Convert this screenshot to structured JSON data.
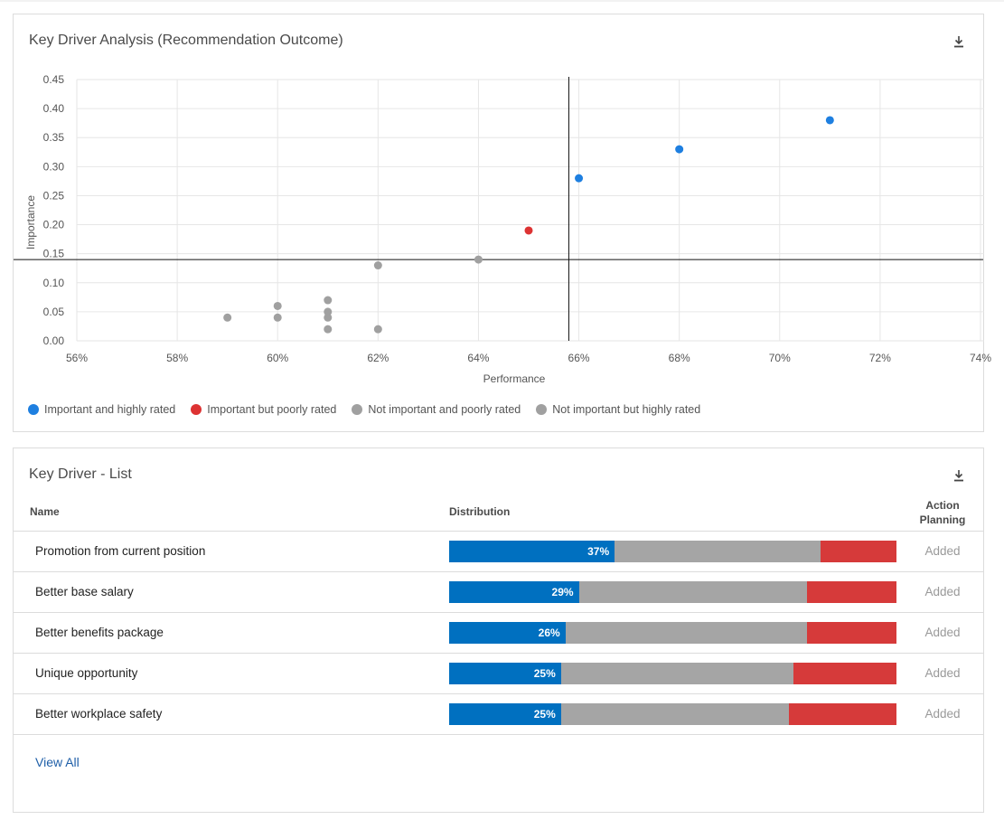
{
  "chart_card": {
    "title": "Key Driver Analysis (Recommendation Outcome)",
    "download_icon": "download-icon"
  },
  "chart_data": {
    "type": "scatter",
    "xlabel": "Performance",
    "ylabel": "Importance",
    "xlim": [
      56,
      74
    ],
    "ylim": [
      0,
      0.45
    ],
    "x_ticks": [
      "56%",
      "58%",
      "60%",
      "62%",
      "64%",
      "66%",
      "68%",
      "70%",
      "72%",
      "74%"
    ],
    "x_tick_values": [
      56,
      58,
      60,
      62,
      64,
      66,
      68,
      70,
      72,
      74
    ],
    "y_ticks": [
      "0.00",
      "0.05",
      "0.10",
      "0.15",
      "0.20",
      "0.25",
      "0.30",
      "0.35",
      "0.40",
      "0.45"
    ],
    "y_tick_values": [
      0,
      0.05,
      0.1,
      0.15,
      0.2,
      0.25,
      0.3,
      0.35,
      0.4,
      0.45
    ],
    "reference_lines": {
      "x": 65.8,
      "y": 0.14
    },
    "grid": true,
    "points": [
      {
        "x": 71,
        "y": 0.38,
        "category": "Important and highly rated"
      },
      {
        "x": 68,
        "y": 0.33,
        "category": "Important and highly rated"
      },
      {
        "x": 66,
        "y": 0.28,
        "category": "Important and highly rated"
      },
      {
        "x": 65,
        "y": 0.19,
        "category": "Important but poorly rated"
      },
      {
        "x": 64,
        "y": 0.14,
        "category": "Not important and poorly rated"
      },
      {
        "x": 62,
        "y": 0.13,
        "category": "Not important and poorly rated"
      },
      {
        "x": 62,
        "y": 0.02,
        "category": "Not important and poorly rated"
      },
      {
        "x": 61,
        "y": 0.07,
        "category": "Not important and poorly rated"
      },
      {
        "x": 61,
        "y": 0.05,
        "category": "Not important and poorly rated"
      },
      {
        "x": 61,
        "y": 0.04,
        "category": "Not important and poorly rated"
      },
      {
        "x": 61,
        "y": 0.02,
        "category": "Not important and poorly rated"
      },
      {
        "x": 60,
        "y": 0.06,
        "category": "Not important and poorly rated"
      },
      {
        "x": 60,
        "y": 0.04,
        "category": "Not important and poorly rated"
      },
      {
        "x": 59,
        "y": 0.04,
        "category": "Not important and poorly rated"
      }
    ],
    "legend": [
      {
        "label": "Important and highly rated",
        "color": "#1e7fe0"
      },
      {
        "label": "Important but poorly rated",
        "color": "#dd3333"
      },
      {
        "label": "Not important and poorly rated",
        "color": "#a0a0a0"
      },
      {
        "label": "Not important but highly rated",
        "color": "#a0a0a0"
      }
    ]
  },
  "list_card": {
    "title": "Key Driver - List",
    "columns": {
      "name": "Name",
      "distribution": "Distribution",
      "action": "Action Planning"
    },
    "rows": [
      {
        "name": "Promotion from current position",
        "blue_pct": 37,
        "blue_label": "37%",
        "gray_pct": 46,
        "red_pct": 17,
        "action": "Added"
      },
      {
        "name": "Better base salary",
        "blue_pct": 29,
        "blue_label": "29%",
        "gray_pct": 51,
        "red_pct": 20,
        "action": "Added"
      },
      {
        "name": "Better benefits package",
        "blue_pct": 26,
        "blue_label": "26%",
        "gray_pct": 54,
        "red_pct": 20,
        "action": "Added"
      },
      {
        "name": "Unique opportunity",
        "blue_pct": 25,
        "blue_label": "25%",
        "gray_pct": 52,
        "red_pct": 23,
        "action": "Added"
      },
      {
        "name": "Better workplace safety",
        "blue_pct": 25,
        "blue_label": "25%",
        "gray_pct": 51,
        "red_pct": 24,
        "action": "Added"
      }
    ],
    "view_all": "View All",
    "colors": {
      "positive": "#0070c0",
      "neutral": "#a5a5a5",
      "negative": "#d63a3a"
    }
  }
}
